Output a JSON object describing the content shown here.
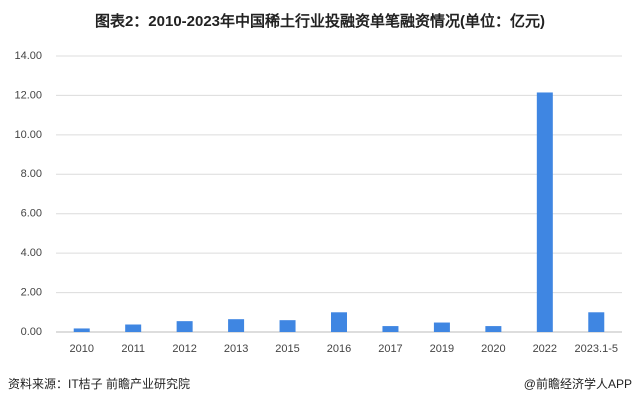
{
  "chart_data": {
    "type": "bar",
    "title": "图表2：2010-2023年中国稀土行业投融资单笔融资情况(单位：亿元)",
    "categories": [
      "2010",
      "2011",
      "2012",
      "2013",
      "2015",
      "2016",
      "2017",
      "2019",
      "2020",
      "2022",
      "2023.1-5"
    ],
    "values": [
      0.18,
      0.38,
      0.55,
      0.65,
      0.6,
      1.0,
      0.3,
      0.48,
      0.3,
      12.15,
      1.0
    ],
    "color": "#3f86e2",
    "ylim": [
      0,
      14
    ],
    "yticks": [
      {
        "value": 0,
        "label": "0.00"
      },
      {
        "value": 2,
        "label": "2.00"
      },
      {
        "value": 4,
        "label": "4.00"
      },
      {
        "value": 6,
        "label": "6.00"
      },
      {
        "value": 8,
        "label": "8.00"
      },
      {
        "value": 10,
        "label": "10.00"
      },
      {
        "value": 12,
        "label": "12.00"
      },
      {
        "value": 14,
        "label": "14.00"
      }
    ],
    "grid": true
  },
  "source": "资料来源：IT桔子 前瞻产业研究院",
  "credit": "@前瞻经济学人APP"
}
